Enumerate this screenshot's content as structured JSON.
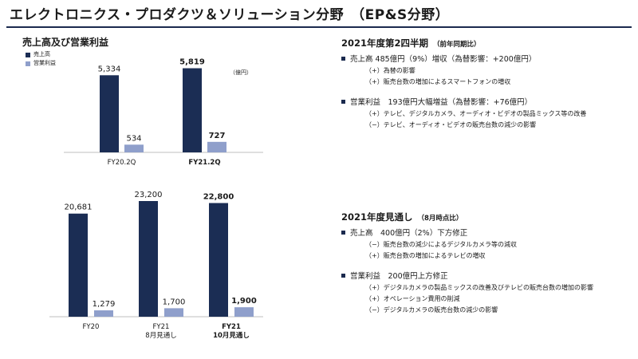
{
  "page": {
    "title": "エレクトロニクス・プロダクツ＆ソリューション分野　（EP&S分野）",
    "chart_title": "売上高及び営業利益",
    "unit_label": "（億円）",
    "colors": {
      "sales": "#1b2d54",
      "op": "#8f9fcb",
      "rule": "#1b2a4e"
    }
  },
  "chart_data": [
    {
      "type": "bar",
      "legend": [
        "売上高",
        "営業利益"
      ],
      "categories": [
        "FY20.2Q",
        "FY21.2Q"
      ],
      "series": [
        {
          "name": "売上高",
          "values": [
            5334,
            5819
          ],
          "labels": [
            "5,334",
            "5,819"
          ]
        },
        {
          "name": "営業利益",
          "values": [
            534,
            727
          ],
          "labels": [
            "534",
            "727"
          ]
        }
      ],
      "ylim": [
        0,
        6400
      ]
    },
    {
      "type": "bar",
      "categories": [
        "FY20",
        "FY21\n8月見通し",
        "FY21\n10月見通し"
      ],
      "series": [
        {
          "name": "売上高",
          "values": [
            20681,
            23200,
            22800
          ],
          "labels": [
            "20,681",
            "23,200",
            "22,800"
          ]
        },
        {
          "name": "営業利益",
          "values": [
            1279,
            1700,
            1900
          ],
          "labels": [
            "1,279",
            "1,700",
            "1,900"
          ]
        }
      ],
      "ylim": [
        0,
        24800
      ]
    }
  ],
  "right": {
    "q2": {
      "heading": "2021年度第2四半期",
      "heading_note": "（前年同期比）",
      "sales": {
        "text": "売上高 485億円（9%）増収（為替影響：+200億円）",
        "items": [
          "（+）為替の影響",
          "（+）販売台数の増加によるスマートフォンの増収"
        ]
      },
      "op": {
        "text": "営業利益　193億円大幅増益（為替影響：+76億円）",
        "items": [
          "（+）テレビ、デジタルカメラ、オーディオ・ビデオの製品ミックス等の改善",
          "（−）テレビ、オーディオ・ビデオの販売台数の減少の影響"
        ]
      }
    },
    "fy": {
      "heading": "2021年度見通し",
      "heading_note": "（8月時点比）",
      "sales": {
        "text": "売上高　400億円（2%）下方修正",
        "items": [
          "（−）販売台数の減少によるデジタルカメラ等の減収",
          "（+）販売台数の増加によるテレビの増収"
        ]
      },
      "op": {
        "text": "営業利益　200億円上方修正",
        "items": [
          "（+）デジタルカメラの製品ミックスの改善及びテレビの販売台数の増加の影響",
          "（+）オペレーション費用の削減",
          "（−）デジタルカメラの販売台数の減少の影響"
        ]
      }
    }
  }
}
